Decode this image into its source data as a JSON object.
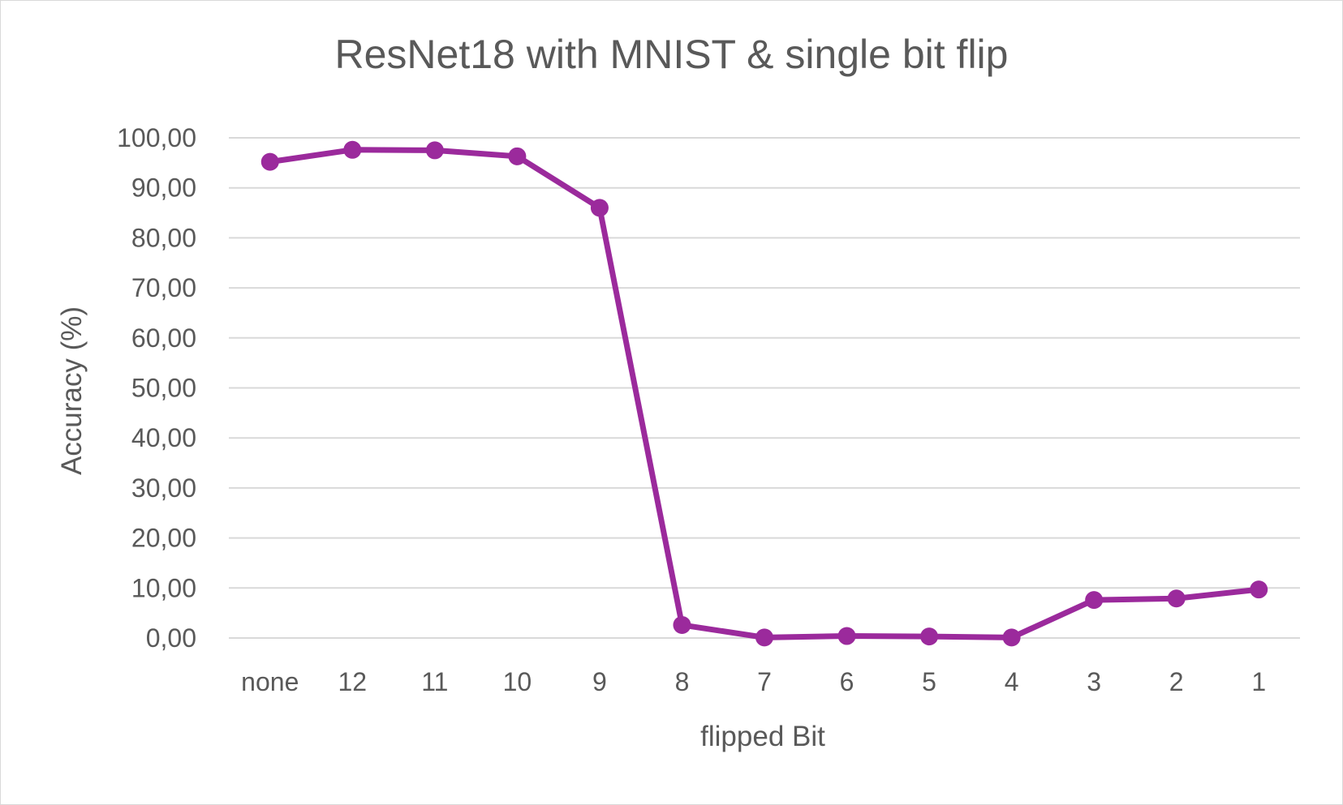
{
  "chart_data": {
    "type": "line",
    "title": "ResNet18 with MNIST & single bit flip",
    "xlabel": "flipped Bit",
    "ylabel": "Accuracy (%)",
    "categories": [
      "none",
      "12",
      "11",
      "10",
      "9",
      "8",
      "7",
      "6",
      "5",
      "4",
      "3",
      "2",
      "1"
    ],
    "series": [
      {
        "values": [
          95.2,
          97.6,
          97.5,
          96.3,
          86.0,
          2.6,
          0.1,
          0.4,
          0.3,
          0.1,
          7.6,
          7.9,
          9.7
        ],
        "color": "#9b2a9c"
      }
    ],
    "ylim": [
      0,
      100
    ],
    "yticks": [
      "0,00",
      "10,00",
      "20,00",
      "30,00",
      "40,00",
      "50,00",
      "60,00",
      "70,00",
      "80,00",
      "90,00",
      "100,00"
    ],
    "grid": true,
    "legend": "none"
  }
}
